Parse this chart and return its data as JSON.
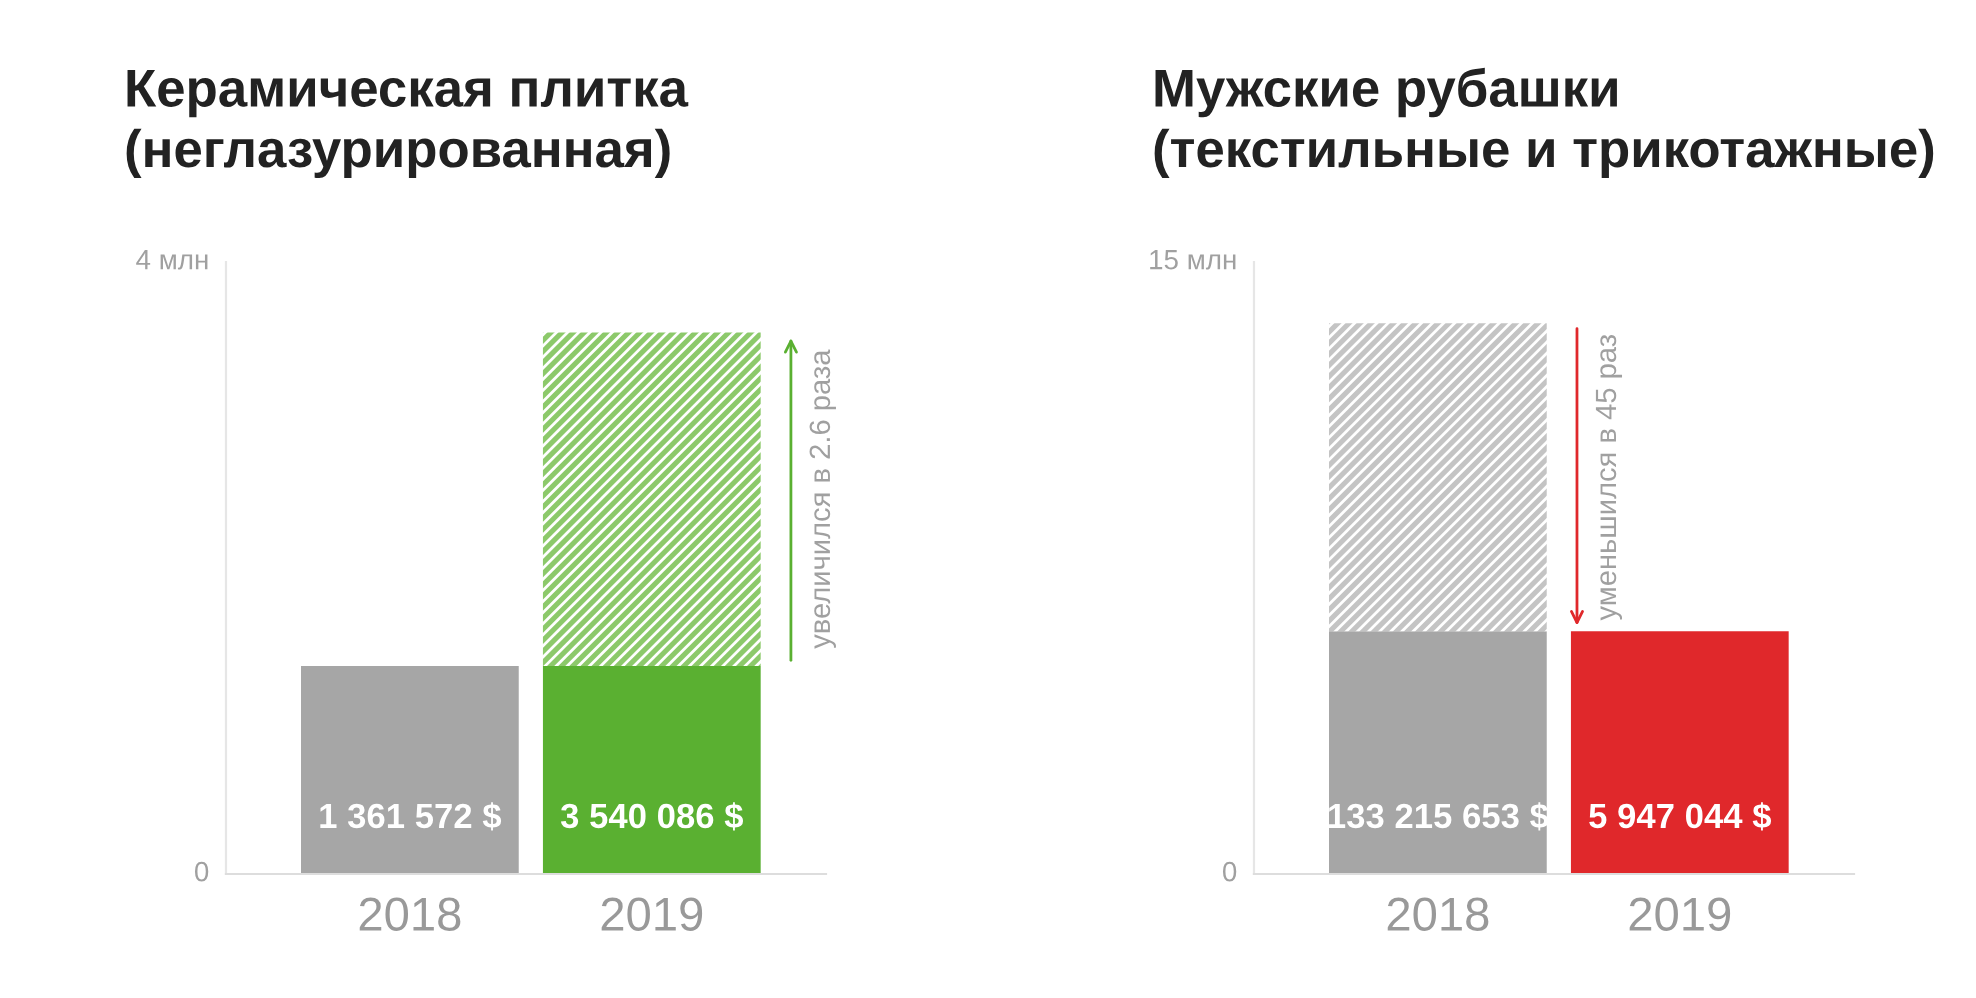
{
  "chart_data": [
    {
      "type": "bar",
      "title": "Керамическая плитка\n(неглазурированная)",
      "categories": [
        "2018",
        "2019"
      ],
      "stacked": true,
      "series": [
        {
          "colors": [
            "#a6a6a6",
            "#5ab031"
          ],
          "values": [
            1.36,
            1.36
          ]
        },
        {
          "colors": [
            "#c4c4c4",
            "#8cc96a"
          ],
          "values": [
            null,
            2.18
          ]
        }
      ],
      "ylim": [
        0,
        4
      ],
      "yticks": [
        0,
        {
          "value": 4,
          "label": "4 млн"
        }
      ],
      "grid": false,
      "legend": false,
      "annotations": [
        "1 361 572 $",
        "3 540 086 $",
        "увеличился в 2.6 раза"
      ]
    },
    {
      "type": "bar",
      "title": "Мужские рубашки\n(текстильные и трикотажные)",
      "categories": [
        "2018",
        "2019"
      ],
      "stacked": true,
      "series": [
        {
          "colors": [
            "#a6a6a6",
            "#e0282b"
          ],
          "values": [
            5.95,
            5.95
          ]
        },
        {
          "colors": [
            "#c4c4c4",
            "#f08080"
          ],
          "values": [
            7.55,
            null
          ]
        }
      ],
      "ylim": [
        0,
        15
      ],
      "yticks": [
        0,
        {
          "value": 15,
          "label": "15 млн"
        }
      ],
      "grid": false,
      "legend": false,
      "annotations": [
        "133 215 653 $",
        "5 947 044 $",
        "уменьшился в 45 раз"
      ]
    }
  ]
}
